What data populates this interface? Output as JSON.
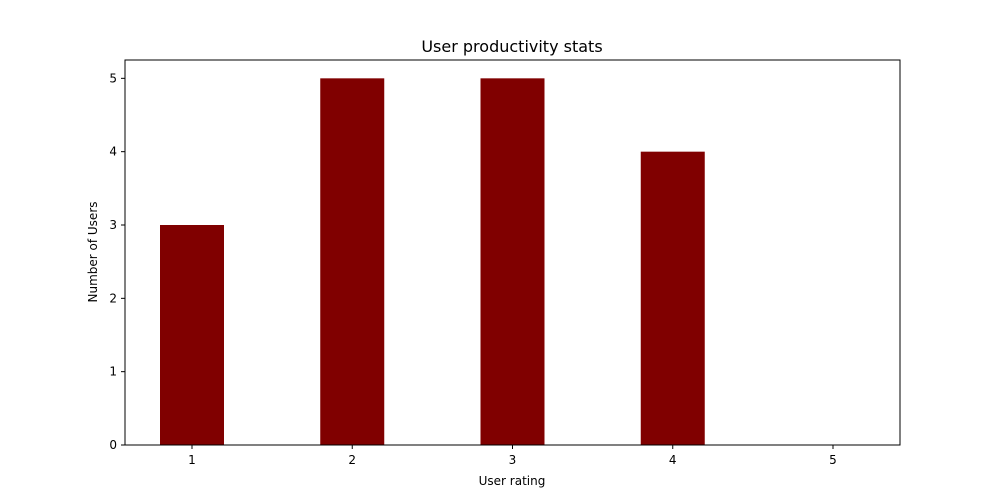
{
  "chart_data": {
    "type": "bar",
    "title": "User productivity stats",
    "xlabel": "User rating",
    "ylabel": "Number of Users",
    "categories": [
      "1",
      "2",
      "3",
      "4",
      "5"
    ],
    "values": [
      3,
      5,
      5,
      4,
      0
    ],
    "yticks": [
      "0",
      "1",
      "2",
      "3",
      "4",
      "5"
    ],
    "ylim": [
      0,
      5.25
    ],
    "bar_color": "#800000",
    "grid": false,
    "legend": "none"
  }
}
